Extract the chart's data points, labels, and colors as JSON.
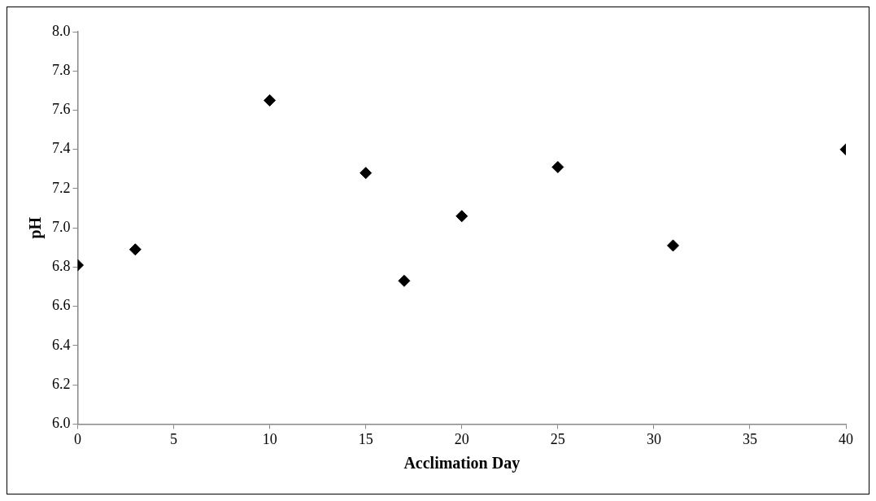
{
  "chart_data": {
    "type": "scatter",
    "xlabel": "Acclimation Day",
    "ylabel": "pH",
    "x": [
      0,
      3,
      10,
      15,
      17,
      20,
      25,
      31,
      40
    ],
    "values": [
      6.81,
      6.89,
      7.65,
      7.28,
      6.73,
      7.06,
      7.31,
      6.91,
      7.4
    ],
    "color": "#000000",
    "marker": "diamond",
    "grid": false,
    "legend": false,
    "xlim": [
      0,
      40
    ],
    "xticks": [
      0,
      5,
      10,
      15,
      20,
      25,
      30,
      35,
      40
    ],
    "ylim": [
      6,
      8
    ],
    "yticks": [
      {
        "value": 6,
        "label": "6.0"
      },
      {
        "value": 6.2,
        "label": "6.2"
      },
      {
        "value": 6.4,
        "label": "6.4"
      },
      {
        "value": 6.6,
        "label": "6.6"
      },
      {
        "value": 6.8,
        "label": "6.8"
      },
      {
        "value": 7,
        "label": "7.0"
      },
      {
        "value": 7.2,
        "label": "7.2"
      },
      {
        "value": 7.4,
        "label": "7.4"
      },
      {
        "value": 7.6,
        "label": "7.6"
      },
      {
        "value": 7.8,
        "label": "7.8"
      },
      {
        "value": 8,
        "label": "8.0"
      }
    ]
  }
}
